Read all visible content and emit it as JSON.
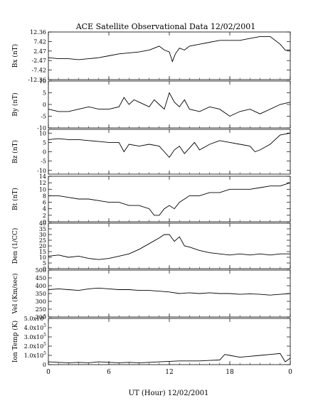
{
  "chart_data": {
    "type": "line",
    "title": "ACE Satellite Observational Data   12/02/2001",
    "xlabel": "UT (Hour)   12/02/2001",
    "x_ticks": [
      "0",
      "6",
      "12",
      "18",
      "0"
    ],
    "xlim": [
      0,
      24
    ],
    "grid": false,
    "panels": [
      {
        "name": "Bx (nT)",
        "ylim": [
          -12.36,
          12.36
        ],
        "ticks": [
          12.36,
          7.42,
          2.47,
          -2.47,
          -7.42,
          -12.36
        ],
        "tick_labels": [
          "12.36",
          "7.42",
          "2.47",
          "-2.47",
          "-7.42",
          "-12.36"
        ],
        "x": [
          0,
          1,
          2,
          3,
          4,
          5,
          6,
          7,
          8,
          9,
          10,
          10.5,
          11,
          11.5,
          12,
          12.3,
          12.6,
          13,
          13.5,
          14,
          15,
          16,
          17,
          18,
          19,
          20,
          21,
          22,
          23,
          23.5,
          24
        ],
        "y": [
          -1,
          -1.5,
          -1.5,
          -2,
          -1.5,
          -1,
          0,
          1,
          1.5,
          2,
          3,
          4,
          5,
          3,
          2,
          -3,
          1,
          4,
          3,
          5,
          6,
          7,
          8,
          8,
          8,
          9,
          10,
          10,
          6,
          3,
          3
        ]
      },
      {
        "name": "By (nT)",
        "ylim": [
          -10,
          10
        ],
        "ticks": [
          10,
          5,
          0,
          -5,
          -10
        ],
        "tick_labels": [
          "10",
          "5",
          "0",
          "-5",
          "-10"
        ],
        "x": [
          0,
          1,
          2,
          3,
          4,
          5,
          6,
          7,
          7.5,
          8,
          8.5,
          9,
          10,
          10.5,
          11,
          11.5,
          12,
          12.5,
          13,
          13.5,
          14,
          15,
          16,
          17,
          18,
          19,
          20,
          21,
          22,
          23,
          24
        ],
        "y": [
          -2,
          -3,
          -3,
          -2,
          -1,
          -2,
          -2,
          -1,
          3,
          0,
          2,
          1,
          -1,
          2,
          0,
          -2,
          5,
          1,
          -1,
          2,
          -2,
          -3,
          -1,
          -2,
          -5,
          -3,
          -2,
          -4,
          -2,
          0,
          1
        ]
      },
      {
        "name": "Bz (nT)",
        "ylim": [
          -12,
          12
        ],
        "ticks": [
          10,
          5,
          0,
          -5,
          -10
        ],
        "tick_labels": [
          "10",
          "5",
          "0",
          "-5",
          "-10"
        ],
        "x": [
          0,
          1,
          2,
          3,
          4,
          5,
          6,
          7,
          7.5,
          8,
          9,
          10,
          11,
          11.5,
          12,
          12.5,
          13,
          13.5,
          14,
          14.5,
          15,
          16,
          17,
          18,
          19,
          20,
          20.5,
          21,
          22,
          23,
          24
        ],
        "y": [
          6.5,
          7,
          6.5,
          6.5,
          6,
          5.5,
          5,
          5,
          0,
          4,
          3,
          4,
          3,
          0,
          -3,
          1,
          3,
          -1,
          2,
          5,
          1,
          4,
          6,
          5,
          4,
          3,
          0,
          1,
          4,
          9,
          10
        ]
      },
      {
        "name": "Bt (nT)",
        "ylim": [
          0,
          14
        ],
        "ticks": [
          14,
          12,
          10,
          8,
          6,
          4,
          2,
          0
        ],
        "tick_labels": [
          "14",
          "12",
          "10",
          "8",
          "6",
          "4",
          "2",
          "0"
        ],
        "x": [
          0,
          1,
          2,
          3,
          4,
          5,
          6,
          7,
          8,
          9,
          10,
          10.5,
          11,
          11.5,
          12,
          12.5,
          13,
          13.5,
          14,
          15,
          16,
          17,
          18,
          19,
          20,
          21,
          22,
          23,
          24
        ],
        "y": [
          8,
          8,
          7.5,
          7,
          7,
          6.5,
          6,
          6,
          5,
          5,
          4,
          2,
          2,
          4,
          5,
          4,
          6,
          7,
          8,
          8,
          9,
          9,
          10,
          10,
          10,
          10.5,
          11,
          11,
          12
        ]
      },
      {
        "name": "Den (1/CC)",
        "ylim": [
          0,
          40
        ],
        "ticks": [
          40,
          35,
          30,
          25,
          20,
          15,
          10,
          5,
          0
        ],
        "tick_labels": [
          "40",
          "35",
          "30",
          "25",
          "20",
          "15",
          "10",
          "5",
          "0"
        ],
        "x": [
          0,
          1,
          2,
          3,
          4,
          5,
          6,
          7,
          8,
          9,
          10,
          11,
          11.5,
          12,
          12.5,
          13,
          13.5,
          14,
          15,
          16,
          17,
          18,
          19,
          20,
          21,
          22,
          23,
          24
        ],
        "y": [
          11,
          12,
          10,
          11,
          9,
          8,
          9,
          11,
          13,
          17,
          22,
          27,
          30,
          30,
          24,
          28,
          20,
          19,
          16,
          14,
          13,
          12,
          13,
          12,
          13,
          12,
          13,
          13
        ]
      },
      {
        "name": "Vel (Km/sec)",
        "ylim": [
          200,
          500
        ],
        "ticks": [
          500,
          450,
          400,
          350,
          300,
          250,
          200
        ],
        "tick_labels": [
          "500",
          "450",
          "400",
          "350",
          "300",
          "250",
          "200"
        ],
        "x": [
          0,
          1,
          2,
          3,
          4,
          5,
          6,
          7,
          8,
          9,
          10,
          11,
          12,
          13,
          14,
          15,
          16,
          17,
          18,
          19,
          20,
          21,
          22,
          23,
          24
        ],
        "y": [
          375,
          380,
          375,
          370,
          380,
          385,
          380,
          375,
          375,
          370,
          370,
          365,
          360,
          350,
          355,
          350,
          355,
          350,
          350,
          345,
          348,
          345,
          340,
          345,
          350
        ]
      },
      {
        "name": "Ion Temp (K)",
        "ylim": [
          0,
          500000
        ],
        "ticks": [
          500000,
          400000,
          300000,
          200000,
          100000,
          0
        ],
        "tick_labels": [
          "5.0x10^5",
          "4.0x10^5",
          "3.0x10^5",
          "2.0x10^5",
          "1.0x10^5",
          "0"
        ],
        "x": [
          0,
          1,
          2,
          3,
          4,
          5,
          6,
          7,
          8,
          9,
          10,
          11,
          12,
          13,
          14,
          15,
          16,
          17,
          17.5,
          18,
          19,
          20,
          21,
          22,
          23,
          23.5,
          24
        ],
        "y": [
          30000,
          25000,
          20000,
          25000,
          20000,
          30000,
          25000,
          20000,
          25000,
          20000,
          25000,
          30000,
          35000,
          40000,
          40000,
          40000,
          45000,
          50000,
          110000,
          100000,
          80000,
          90000,
          100000,
          110000,
          120000,
          30000,
          70000
        ]
      }
    ]
  }
}
